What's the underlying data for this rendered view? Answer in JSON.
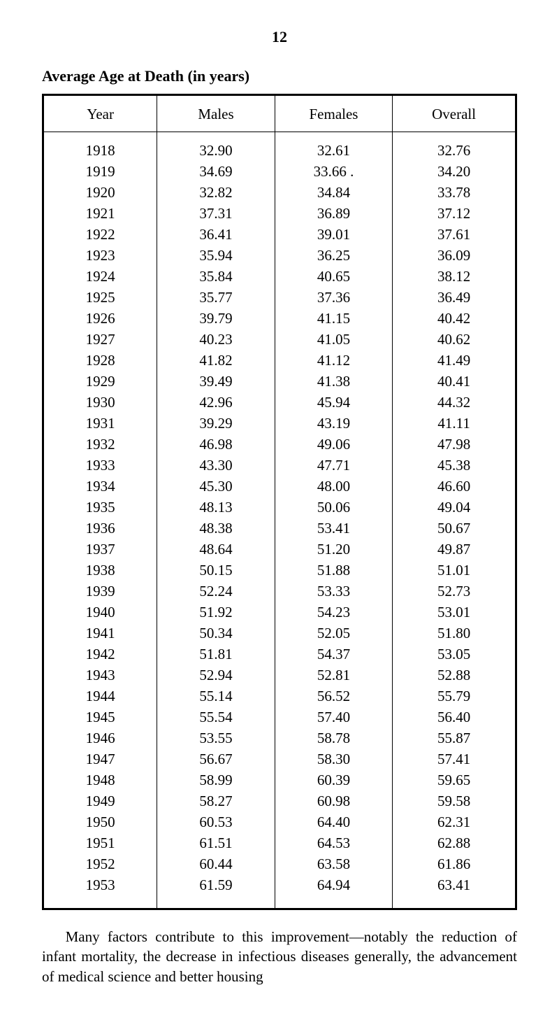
{
  "page_number": "12",
  "title": "Average Age at Death (in years)",
  "table": {
    "type": "table",
    "columns": [
      "Year",
      "Males",
      "Females",
      "Overall"
    ],
    "column_alignment": [
      "center",
      "center",
      "center",
      "center"
    ],
    "border_color": "#000000",
    "background_color": "#ffffff",
    "header_fontsize": 21,
    "cell_fontsize": 21,
    "rows": [
      [
        "1918",
        "32.90",
        "32.61",
        "32.76"
      ],
      [
        "1919",
        "34.69",
        "33.66 .",
        "34.20"
      ],
      [
        "1920",
        "32.82",
        "34.84",
        "33.78"
      ],
      [
        "1921",
        "37.31",
        "36.89",
        "37.12"
      ],
      [
        "1922",
        "36.41",
        "39.01",
        "37.61"
      ],
      [
        "1923",
        "35.94",
        "36.25",
        "36.09"
      ],
      [
        "1924",
        "35.84",
        "40.65",
        "38.12"
      ],
      [
        "1925",
        "35.77",
        "37.36",
        "36.49"
      ],
      [
        "1926",
        "39.79",
        "41.15",
        "40.42"
      ],
      [
        "1927",
        "40.23",
        "41.05",
        "40.62"
      ],
      [
        "1928",
        "41.82",
        "41.12",
        "41.49"
      ],
      [
        "1929",
        "39.49",
        "41.38",
        "40.41"
      ],
      [
        "1930",
        "42.96",
        "45.94",
        "44.32"
      ],
      [
        "1931",
        "39.29",
        "43.19",
        "41.11"
      ],
      [
        "1932",
        "46.98",
        "49.06",
        "47.98"
      ],
      [
        "1933",
        "43.30",
        "47.71",
        "45.38"
      ],
      [
        "1934",
        "45.30",
        "48.00",
        "46.60"
      ],
      [
        "1935",
        "48.13",
        "50.06",
        "49.04"
      ],
      [
        "1936",
        "48.38",
        "53.41",
        "50.67"
      ],
      [
        "1937",
        "48.64",
        "51.20",
        "49.87"
      ],
      [
        "1938",
        "50.15",
        "51.88",
        "51.01"
      ],
      [
        "1939",
        "52.24",
        "53.33",
        "52.73"
      ],
      [
        "1940",
        "51.92",
        "54.23",
        "53.01"
      ],
      [
        "1941",
        "50.34",
        "52.05",
        "51.80"
      ],
      [
        "1942",
        "51.81",
        "54.37",
        "53.05"
      ],
      [
        "1943",
        "52.94",
        "52.81",
        "52.88"
      ],
      [
        "1944",
        "55.14",
        "56.52",
        "55.79"
      ],
      [
        "1945",
        "55.54",
        "57.40",
        "56.40"
      ],
      [
        "1946",
        "53.55",
        "58.78",
        "55.87"
      ],
      [
        "1947",
        "56.67",
        "58.30",
        "57.41"
      ],
      [
        "1948",
        "58.99",
        "60.39",
        "59.65"
      ],
      [
        "1949",
        "58.27",
        "60.98",
        "59.58"
      ],
      [
        "1950",
        "60.53",
        "64.40",
        "62.31"
      ],
      [
        "1951",
        "61.51",
        "64.53",
        "62.88"
      ],
      [
        "1952",
        "60.44",
        "63.58",
        "61.86"
      ],
      [
        "1953",
        "61.59",
        "64.94",
        "63.41"
      ]
    ]
  },
  "caption": "Many factors contribute to this improvement—notably the re­duction of infant mortality, the decrease in infectious diseases generally, the advancement of medical science and better housing"
}
